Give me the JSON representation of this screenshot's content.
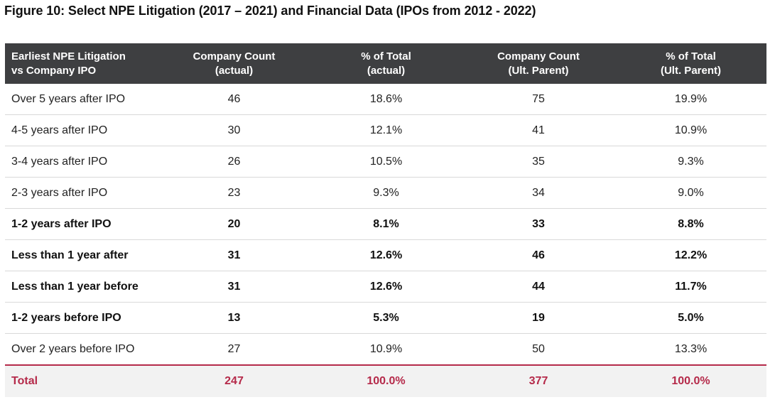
{
  "title": "Figure 10: Select NPE Litigation (2017 – 2021) and Financial Data (IPOs from 2012 - 2022)",
  "colors": {
    "header_bg": "#3e3f41",
    "total_text": "#b52a4a",
    "total_bg": "#f2f2f2"
  },
  "headers": [
    {
      "line1": "Earliest NPE Litigation",
      "line2": "vs Company IPO"
    },
    {
      "line1": "Company Count",
      "line2": "(actual)"
    },
    {
      "line1": "% of Total",
      "line2": "(actual)"
    },
    {
      "line1": "Company Count",
      "line2": "(Ult. Parent)"
    },
    {
      "line1": "% of Total",
      "line2": "(Ult. Parent)"
    }
  ],
  "rows": [
    {
      "label": "Over 5 years after IPO",
      "count_actual": "46",
      "pct_actual": "18.6%",
      "count_parent": "75",
      "pct_parent": "19.9%",
      "bold": false
    },
    {
      "label": "4-5 years after IPO",
      "count_actual": "30",
      "pct_actual": "12.1%",
      "count_parent": "41",
      "pct_parent": "10.9%",
      "bold": false
    },
    {
      "label": "3-4 years after IPO",
      "count_actual": "26",
      "pct_actual": "10.5%",
      "count_parent": "35",
      "pct_parent": "9.3%",
      "bold": false
    },
    {
      "label": "2-3 years after IPO",
      "count_actual": "23",
      "pct_actual": "9.3%",
      "count_parent": "34",
      "pct_parent": "9.0%",
      "bold": false
    },
    {
      "label": "1-2 years after IPO",
      "count_actual": "20",
      "pct_actual": "8.1%",
      "count_parent": "33",
      "pct_parent": "8.8%",
      "bold": true
    },
    {
      "label": "Less than 1 year after",
      "count_actual": "31",
      "pct_actual": "12.6%",
      "count_parent": "46",
      "pct_parent": "12.2%",
      "bold": true
    },
    {
      "label": "Less than 1 year before",
      "count_actual": "31",
      "pct_actual": "12.6%",
      "count_parent": "44",
      "pct_parent": "11.7%",
      "bold": true
    },
    {
      "label": "1-2 years before IPO",
      "count_actual": "13",
      "pct_actual": "5.3%",
      "count_parent": "19",
      "pct_parent": "5.0%",
      "bold": true
    },
    {
      "label": "Over 2 years before IPO",
      "count_actual": "27",
      "pct_actual": "10.9%",
      "count_parent": "50",
      "pct_parent": "13.3%",
      "bold": false
    }
  ],
  "total": {
    "label": "Total",
    "count_actual": "247",
    "pct_actual": "100.0%",
    "count_parent": "377",
    "pct_parent": "100.0%"
  }
}
